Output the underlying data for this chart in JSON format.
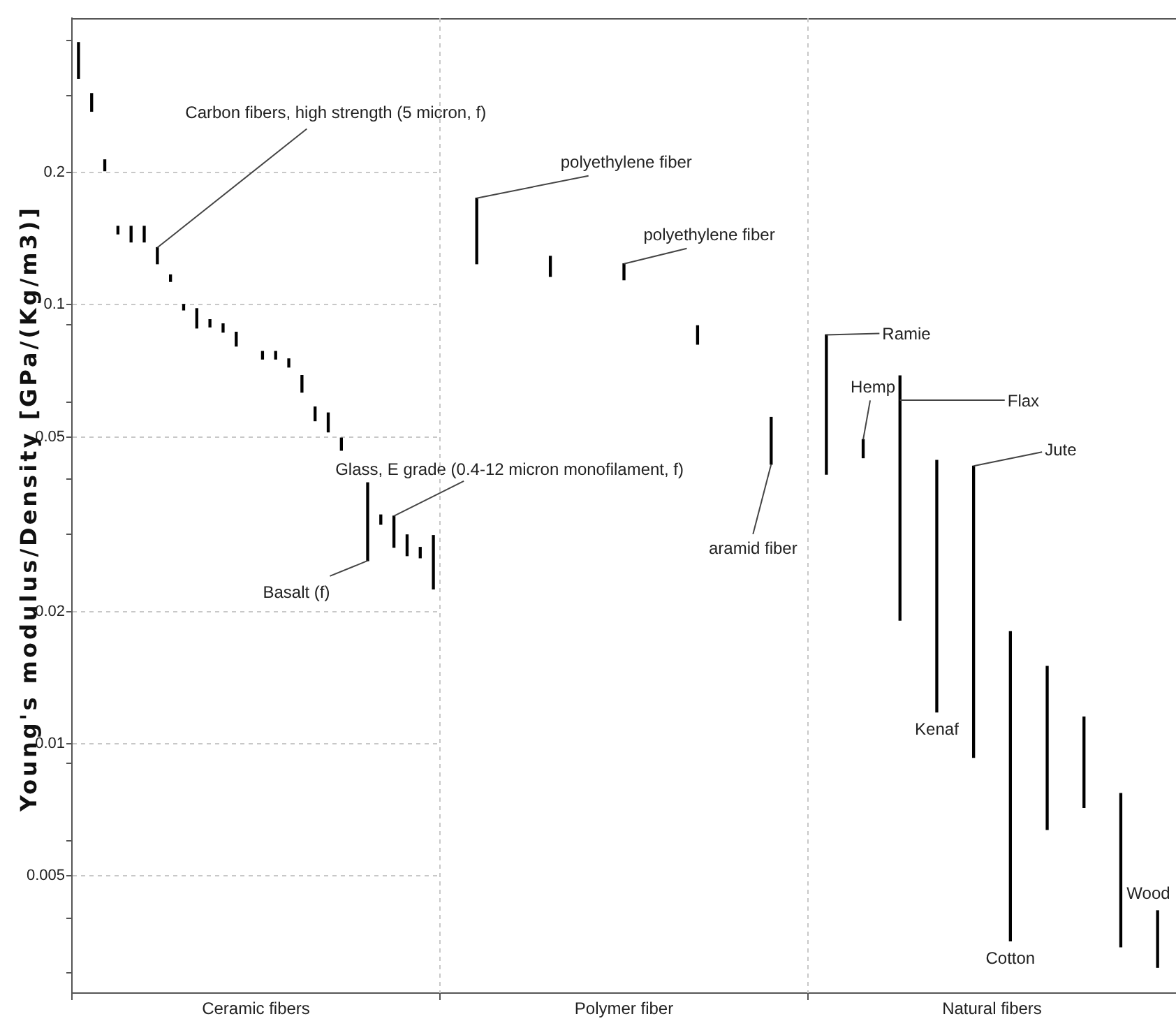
{
  "chart_data": [
    {
      "type": "bar",
      "xlabel": "Ceramic fibers",
      "ylabel": "Young's modulus/Density [GPa/(Kg/m3)]",
      "categories": [
        null,
        null,
        null,
        null,
        null,
        null,
        null,
        null,
        null,
        null,
        null,
        null,
        null,
        null,
        null,
        null,
        null,
        null,
        null,
        null,
        null,
        null,
        null,
        null,
        null,
        null,
        null,
        null
      ],
      "base": [
        0.328,
        0.276,
        0.202,
        0.145,
        0.139,
        0.139,
        0.124,
        0.113,
        0.0973,
        0.0885,
        0.089,
        0.0866,
        0.0805,
        null,
        0.0752,
        0.0752,
        0.0721,
        0.0632,
        0.0544,
        0.0513,
        0.0466,
        null,
        0.0261,
        0.0316,
        0.028,
        0.0268,
        0.0265,
        0.0225
      ],
      "values": [
        0.068,
        0.027,
        0.012,
        0.006,
        0.012,
        0.012,
        0.011,
        0.004,
        0.0029,
        0.0095,
        0.0035,
        0.0039,
        0.0061,
        null,
        0.0031,
        0.0031,
        0.0032,
        0.0058,
        0.0041,
        0.0054,
        0.0031,
        null,
        0.0132,
        0.0016,
        0.005,
        0.0031,
        0.0015,
        0.0073
      ],
      "color": "#000000",
      "ylim": [
        0.0027,
        0.45
      ],
      "yticks": [
        {
          "value": 0.003,
          "label": null
        },
        {
          "value": 0.004,
          "label": null
        },
        0.005,
        {
          "value": 0.006,
          "label": null
        },
        {
          "value": 0.009,
          "label": null
        },
        0.01,
        0.02,
        {
          "value": 0.03,
          "label": null
        },
        {
          "value": 0.04,
          "label": null
        },
        0.05,
        {
          "value": 0.06,
          "label": null
        },
        {
          "value": 0.09,
          "label": null
        },
        0.1,
        0.2,
        {
          "value": 0.3,
          "label": null
        },
        {
          "value": 0.4,
          "label": null
        }
      ],
      "log": true,
      "grid": "y",
      "tick_labels": "y",
      "annotations": [
        "Carbon fibers, high strength (5 micron, f)",
        "Glass, E grade (0.4-12 micron monofilament, f)",
        "Basalt (f)"
      ]
    },
    {
      "type": "bar",
      "xlabel": "Polymer fiber",
      "categories": [
        null,
        null,
        null,
        null,
        null
      ],
      "base": [
        0.124,
        0.116,
        0.114,
        0.0813,
        0.0433
      ],
      "values": [
        0.051,
        0.013,
        0.01,
        0.0083,
        0.0121
      ],
      "color": "#000000",
      "ylim": [
        0.0027,
        0.45
      ],
      "log": true,
      "grid": "y",
      "tick_labels": false,
      "annotations": [
        "polyethylene fiber",
        "polyethylene fiber",
        "aramid fiber"
      ]
    },
    {
      "type": "bar",
      "xlabel": "Natural fibers",
      "categories": [
        null,
        null,
        null,
        null,
        null,
        null,
        null,
        null,
        null,
        null
      ],
      "base": [
        0.0411,
        0.0448,
        0.0191,
        0.0118,
        0.0093,
        0.00355,
        0.00637,
        0.00715,
        0.00344,
        0.00309
      ],
      "values": [
        0.0443,
        0.0045,
        0.0498,
        0.0324,
        0.0336,
        0.01445,
        0.00863,
        0.00435,
        0.00426,
        0.00107
      ],
      "color": "#000000",
      "ylim": [
        0.0027,
        0.45
      ],
      "log": true,
      "grid": "y",
      "tick_labels": false,
      "annotations": [
        "Ramie",
        "Hemp",
        "Flax",
        "Jute",
        "Kenaf",
        "Cotton",
        "Wood"
      ]
    }
  ]
}
